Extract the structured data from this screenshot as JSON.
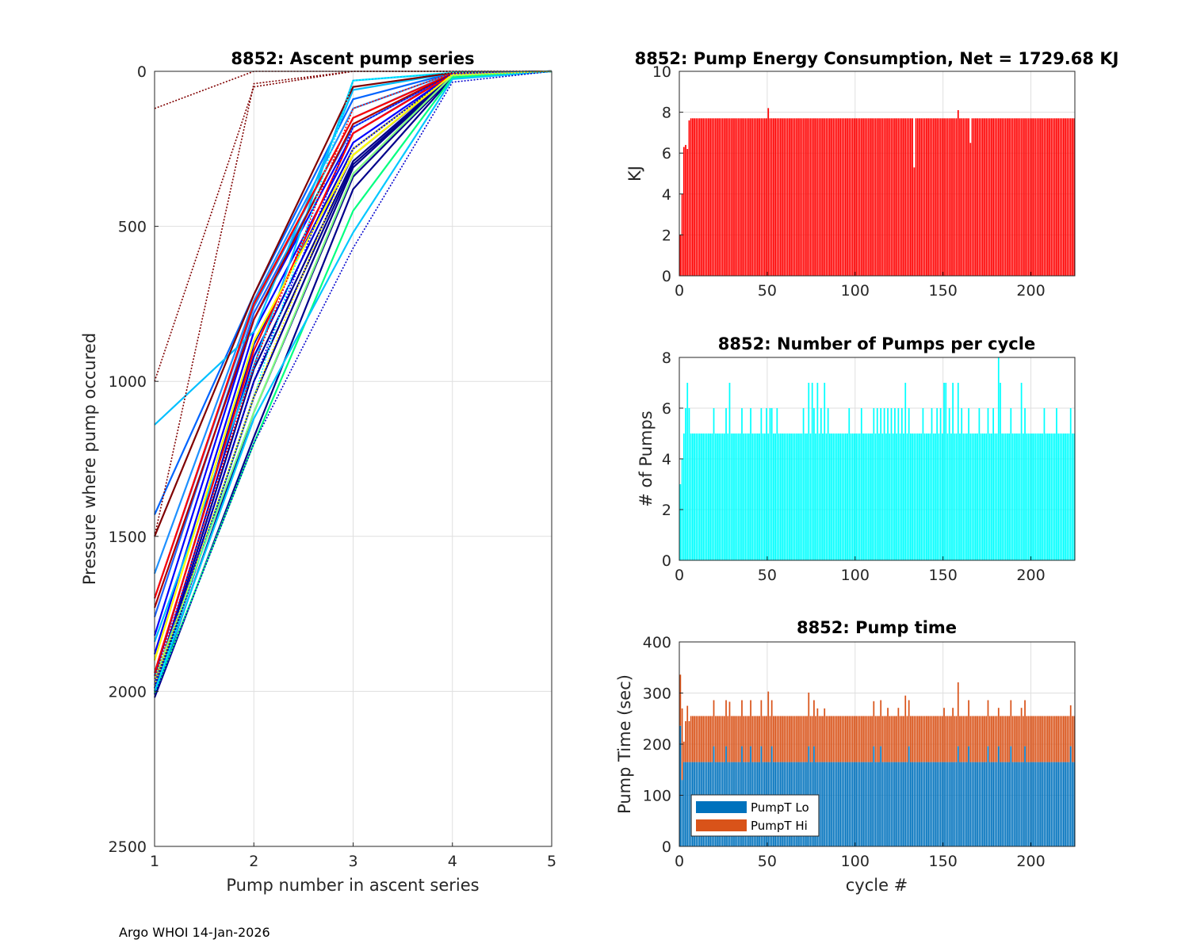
{
  "footer": "Argo WHOI 14-Jan-2026",
  "colors": {
    "energy": "#ff0000",
    "pumps": "#00ffff",
    "lo": "#0072bd",
    "hi": "#d95319",
    "grid": "#dfdfdf",
    "axis": "#262626"
  },
  "chart_data": [
    {
      "id": "ascent",
      "type": "line",
      "title": "8852: Ascent pump series",
      "xlabel": "Pump number in ascent series",
      "ylabel": "Pressure where pump occured",
      "xlim": [
        1,
        5
      ],
      "ylim": [
        0,
        2500
      ],
      "y_reversed": true,
      "xticks": [
        "1",
        "2",
        "3",
        "4",
        "5"
      ],
      "yticks": [
        "0",
        "500",
        "1000",
        "1500",
        "2000",
        "2500"
      ],
      "grid": true,
      "series": [
        {
          "color": "#00008b",
          "style": "solid",
          "x": [
            1,
            2,
            3,
            4,
            5
          ],
          "y": [
            2020,
            1180,
            380,
            20,
            0
          ]
        },
        {
          "color": "#00008b",
          "style": "solid",
          "x": [
            1,
            2,
            3,
            4,
            5
          ],
          "y": [
            2010,
            1100,
            340,
            18,
            0
          ]
        },
        {
          "color": "#00008b",
          "style": "solid",
          "x": [
            1,
            2,
            3,
            4,
            5
          ],
          "y": [
            2000,
            1050,
            310,
            15,
            0
          ]
        },
        {
          "color": "#00008b",
          "style": "solid",
          "x": [
            1,
            2,
            3,
            4,
            5
          ],
          "y": [
            2000,
            1000,
            300,
            15,
            0
          ]
        },
        {
          "color": "#00008b",
          "style": "solid",
          "x": [
            1,
            2,
            3,
            4,
            5
          ],
          "y": [
            1990,
            960,
            290,
            12,
            0
          ]
        },
        {
          "color": "#0000cd",
          "style": "solid",
          "x": [
            1,
            2,
            3,
            4,
            5
          ],
          "y": [
            1980,
            920,
            270,
            12,
            0
          ]
        },
        {
          "color": "#0000cd",
          "style": "solid",
          "x": [
            1,
            2,
            3,
            4,
            5
          ],
          "y": [
            1950,
            880,
            250,
            10,
            0
          ]
        },
        {
          "color": "#0000ff",
          "style": "solid",
          "x": [
            1,
            2,
            3,
            4,
            5
          ],
          "y": [
            1880,
            840,
            230,
            10,
            0
          ]
        },
        {
          "color": "#0000ff",
          "style": "solid",
          "x": [
            1,
            2,
            3,
            4,
            5
          ],
          "y": [
            1820,
            800,
            200,
            8,
            0
          ]
        },
        {
          "color": "#1e64ff",
          "style": "solid",
          "x": [
            1,
            2,
            3,
            4,
            5
          ],
          "y": [
            1760,
            780,
            180,
            8,
            0
          ]
        },
        {
          "color": "#1e90ff",
          "style": "solid",
          "x": [
            1,
            2,
            3,
            4,
            5
          ],
          "y": [
            1700,
            760,
            150,
            6,
            0
          ]
        },
        {
          "color": "#1e90ff",
          "style": "solid",
          "x": [
            1,
            2,
            3,
            4,
            5
          ],
          "y": [
            1620,
            740,
            120,
            5,
            0
          ]
        },
        {
          "color": "#0064ff",
          "style": "solid",
          "x": [
            1,
            2,
            3,
            4,
            5
          ],
          "y": [
            1430,
            720,
            90,
            5,
            0
          ]
        },
        {
          "color": "#00bfff",
          "style": "solid",
          "x": [
            1,
            2,
            3,
            4,
            5
          ],
          "y": [
            1140,
            840,
            60,
            5,
            0
          ]
        },
        {
          "color": "#00bfff",
          "style": "solid",
          "x": [
            1,
            2,
            3,
            4,
            5
          ],
          "y": [
            1840,
            950,
            30,
            5,
            0
          ]
        },
        {
          "color": "#ff0000",
          "style": "solid",
          "x": [
            1,
            2,
            3,
            4,
            5
          ],
          "y": [
            1940,
            900,
            200,
            10,
            0
          ]
        },
        {
          "color": "#ff0000",
          "style": "solid",
          "x": [
            1,
            2,
            3,
            4,
            5
          ],
          "y": [
            1700,
            750,
            150,
            8,
            0
          ]
        },
        {
          "color": "#b00000",
          "style": "solid",
          "x": [
            1,
            2,
            3,
            4,
            5
          ],
          "y": [
            1730,
            800,
            170,
            8,
            0
          ]
        },
        {
          "color": "#800000",
          "style": "solid",
          "x": [
            1,
            2,
            3,
            4,
            5
          ],
          "y": [
            1500,
            720,
            50,
            5,
            0
          ]
        },
        {
          "color": "#ffff00",
          "style": "solid",
          "x": [
            1,
            2,
            3,
            4,
            5
          ],
          "y": [
            1900,
            870,
            270,
            10,
            0
          ]
        },
        {
          "color": "#80ff80",
          "style": "solid",
          "x": [
            1,
            2,
            3,
            4,
            5
          ],
          "y": [
            1960,
            1100,
            330,
            14,
            0
          ]
        },
        {
          "color": "#00ff80",
          "style": "solid",
          "x": [
            1,
            2,
            3,
            4,
            5
          ],
          "y": [
            2005,
            1200,
            450,
            20,
            0
          ]
        },
        {
          "color": "#00c8ff",
          "style": "solid",
          "x": [
            1,
            2,
            3,
            4,
            5
          ],
          "y": [
            2000,
            1120,
            520,
            25,
            0
          ]
        },
        {
          "color": "#0000cd",
          "style": "dotted",
          "x": [
            1,
            2,
            3,
            4,
            5
          ],
          "y": [
            2010,
            1200,
            570,
            35,
            0
          ]
        },
        {
          "color": "#800000",
          "style": "dotted",
          "x": [
            1,
            2,
            3,
            4,
            5
          ],
          "y": [
            120,
            0,
            0,
            0,
            0
          ]
        },
        {
          "color": "#800000",
          "style": "dotted",
          "x": [
            1,
            2,
            3,
            4,
            5
          ],
          "y": [
            1000,
            50,
            0,
            0,
            0
          ]
        },
        {
          "color": "#800000",
          "style": "dotted",
          "x": [
            1,
            2,
            3,
            4,
            5
          ],
          "y": [
            1500,
            40,
            0,
            0,
            0
          ]
        },
        {
          "color": "#ff0000",
          "style": "dotted",
          "x": [
            1,
            2,
            3,
            4,
            5
          ],
          "y": [
            1960,
            950,
            120,
            5,
            0
          ]
        },
        {
          "color": "#0000ff",
          "style": "dotted",
          "x": [
            1,
            2,
            3,
            4,
            5
          ],
          "y": [
            1990,
            1000,
            180,
            8,
            0
          ]
        },
        {
          "color": "#00ffff",
          "style": "dotted",
          "x": [
            1,
            2,
            3,
            4,
            5
          ],
          "y": [
            2000,
            1050,
            30,
            3,
            0
          ]
        },
        {
          "color": "#ffff00",
          "style": "dotted",
          "x": [
            1,
            2,
            3,
            4,
            5
          ],
          "y": [
            1980,
            1050,
            250,
            12,
            0
          ]
        }
      ]
    },
    {
      "id": "energy",
      "type": "bar",
      "title": "8852: Pump Energy Consumption,  Net = 1729.68 KJ",
      "xlabel": "",
      "ylabel": "KJ",
      "xlim": [
        0,
        225
      ],
      "ylim": [
        0,
        10
      ],
      "xticks": [
        "0",
        "50",
        "100",
        "150",
        "200"
      ],
      "yticks": [
        "0",
        "2",
        "4",
        "6",
        "8",
        "10"
      ],
      "grid": true,
      "typical_value": 7.7,
      "overrides": {
        "0": 2.0,
        "1": 4.0,
        "2": 6.3,
        "3": 6.4,
        "4": 6.2,
        "5": 7.6,
        "50": 8.2,
        "133": 5.3,
        "165": 6.5,
        "158": 8.1
      }
    },
    {
      "id": "pumps",
      "type": "bar",
      "title": "8852: Number of Pumps per cycle",
      "xlabel": "",
      "ylabel": "# of Pumps",
      "xlim": [
        0,
        225
      ],
      "ylim": [
        0,
        8
      ],
      "xticks": [
        "0",
        "50",
        "100",
        "150",
        "200"
      ],
      "yticks": [
        "0",
        "2",
        "4",
        "6",
        "8"
      ],
      "grid": true,
      "typical_value": 5,
      "overrides": {
        "0": 3,
        "1": 4,
        "2": 5,
        "3": 6,
        "4": 7,
        "5": 6,
        "19": 6,
        "26": 6,
        "28": 7,
        "35": 6,
        "40": 6,
        "46": 6,
        "49": 6,
        "51": 6,
        "52": 6,
        "55": 6,
        "70": 6,
        "73": 7,
        "75": 7,
        "76": 6,
        "78": 7,
        "80": 6,
        "82": 7,
        "84": 6,
        "96": 6,
        "103": 6,
        "110": 6,
        "112": 6,
        "114": 6,
        "116": 6,
        "118": 6,
        "120": 6,
        "122": 6,
        "124": 6,
        "126": 6,
        "128": 7,
        "130": 6,
        "138": 6,
        "143": 6,
        "146": 6,
        "148": 6,
        "150": 7,
        "151": 7,
        "153": 6,
        "155": 7,
        "158": 7,
        "160": 6,
        "164": 6,
        "170": 6,
        "175": 6,
        "178": 6,
        "181": 8,
        "182": 7,
        "188": 6,
        "194": 7,
        "196": 6,
        "207": 6,
        "214": 6,
        "222": 6
      }
    },
    {
      "id": "time",
      "type": "bar",
      "stacked": true,
      "title": "8852: Pump time",
      "xlabel": "cycle #",
      "ylabel": "Pump Time (sec)",
      "xlim": [
        0,
        225
      ],
      "ylim": [
        0,
        400
      ],
      "xticks": [
        "0",
        "50",
        "100",
        "150",
        "200"
      ],
      "yticks": [
        "0",
        "100",
        "200",
        "300",
        "400"
      ],
      "grid": true,
      "legend": {
        "position": "bottom-left",
        "entries": [
          "PumpT Lo",
          "PumpT Hi"
        ]
      },
      "series": [
        {
          "name": "PumpT Lo",
          "typical_value": 165,
          "overrides": {
            "0": 236,
            "1": 130,
            "19": 196,
            "26": 196,
            "35": 196,
            "40": 196,
            "46": 196,
            "52": 196,
            "73": 196,
            "76": 196,
            "110": 196,
            "114": 196,
            "130": 196,
            "158": 196,
            "164": 196,
            "175": 196,
            "181": 196,
            "188": 196,
            "196": 196,
            "222": 196
          }
        },
        {
          "name": "PumpT Hi",
          "typical_value": 90,
          "overrides": {
            "0": 100,
            "1": 140,
            "2": 40,
            "3": 80,
            "4": 110,
            "5": 80,
            "19": 90,
            "28": 118,
            "50": 138,
            "73": 105,
            "78": 105,
            "82": 105,
            "110": 88,
            "118": 106,
            "124": 106,
            "128": 130,
            "150": 106,
            "155": 106,
            "158": 125,
            "170": 90,
            "181": 75,
            "194": 106,
            "222": 80
          }
        }
      ]
    }
  ]
}
